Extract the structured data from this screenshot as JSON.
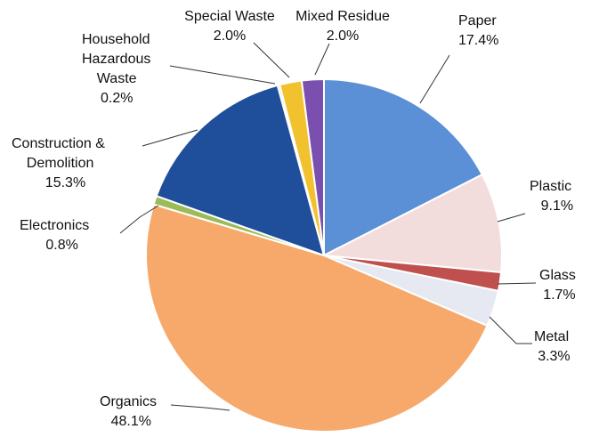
{
  "chart_data": {
    "type": "pie",
    "title": "",
    "slices": [
      {
        "name": "Paper",
        "value": 17.4,
        "label": "17.4%",
        "color": "#5B8FD6"
      },
      {
        "name": "Plastic",
        "value": 9.1,
        "label": "9.1%",
        "color": "#F3DCDC"
      },
      {
        "name": "Glass",
        "value": 1.7,
        "label": "1.7%",
        "color": "#C0504D"
      },
      {
        "name": "Metal",
        "value": 3.3,
        "label": "3.3%",
        "color": "#E6E9F2"
      },
      {
        "name": "Organics",
        "value": 48.1,
        "label": "48.1%",
        "color": "#F6A96A"
      },
      {
        "name": "Electronics",
        "value": 0.8,
        "label": "0.8%",
        "color": "#9BBB59"
      },
      {
        "name": "Construction & Demolition",
        "value": 15.3,
        "label": "15.3%",
        "color": "#1F4E9A"
      },
      {
        "name": "Household Hazardous Waste",
        "value": 0.2,
        "label": "0.2%",
        "color": "#B7C9E6"
      },
      {
        "name": "Special Waste",
        "value": 2.0,
        "label": "2.0%",
        "color": "#F2C12E"
      },
      {
        "name": "Mixed Residue",
        "value": 2.0,
        "label": "2.0%",
        "color": "#7B4FB0"
      }
    ],
    "legend": "none",
    "label_lines": {
      "Paper": [
        "Paper"
      ],
      "Plastic": [
        "Plastic"
      ],
      "Glass": [
        "Glass"
      ],
      "Metal": [
        "Metal"
      ],
      "Organics": [
        "Organics"
      ],
      "Electronics": [
        "Electronics"
      ],
      "Construction & Demolition": [
        "Construction &",
        "Demolition"
      ],
      "Household Hazardous Waste": [
        "Household",
        "Hazardous",
        "Waste"
      ],
      "Special Waste": [
        "Special Waste"
      ],
      "Mixed Residue": [
        "Mixed Residue"
      ]
    }
  }
}
